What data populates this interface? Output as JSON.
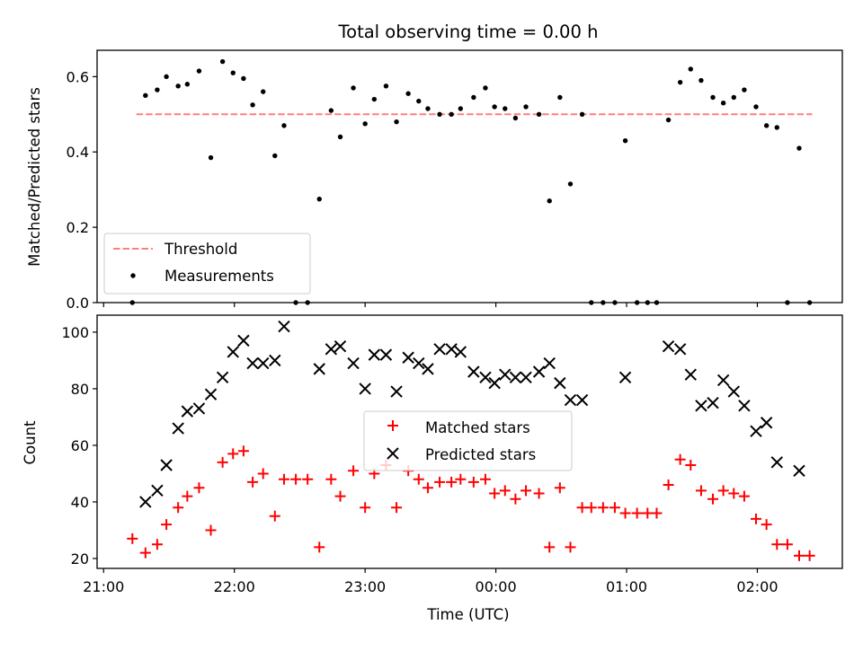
{
  "figure": {
    "title": "Total observing time = 0.00 h",
    "xlabel": "Time (UTC)"
  },
  "chart_data": [
    {
      "type": "scatter",
      "ylabel": "Matched/Predicted stars",
      "xlim_hours": [
        20.95,
        26.65
      ],
      "ylim": [
        0,
        0.67
      ],
      "yticks": [
        0.0,
        0.2,
        0.4,
        0.6
      ],
      "ytick_labels": [
        "0.0",
        "0.2",
        "0.4",
        "0.6"
      ],
      "legend_position": "lower-left",
      "threshold": {
        "name": "Threshold",
        "value": 0.5,
        "x_range": [
          21.25,
          26.42
        ],
        "color": "#ff7f7f"
      },
      "series": [
        {
          "name": "Measurements",
          "color": "#000000",
          "x": [
            21.22,
            21.32,
            21.41,
            21.48,
            21.57,
            21.64,
            21.73,
            21.82,
            21.91,
            21.99,
            22.07,
            22.14,
            22.22,
            22.31,
            22.38,
            22.47,
            22.56,
            22.65,
            22.74,
            22.81,
            22.91,
            23.0,
            23.07,
            23.16,
            23.24,
            23.33,
            23.41,
            23.48,
            23.57,
            23.66,
            23.73,
            23.83,
            23.92,
            23.99,
            24.07,
            24.15,
            24.23,
            24.33,
            24.41,
            24.49,
            24.57,
            24.66,
            24.73,
            24.82,
            24.91,
            24.99,
            25.08,
            25.16,
            25.23,
            25.32,
            25.41,
            25.49,
            25.57,
            25.66,
            25.74,
            25.82,
            25.9,
            25.99,
            26.07,
            26.15,
            26.23,
            26.32,
            26.4
          ],
          "y": [
            0.0,
            0.55,
            0.565,
            0.6,
            0.575,
            0.58,
            0.615,
            0.385,
            0.64,
            0.61,
            0.595,
            0.525,
            0.56,
            0.39,
            0.47,
            0.0,
            0.0,
            0.275,
            0.51,
            0.44,
            0.57,
            0.475,
            0.54,
            0.575,
            0.48,
            0.555,
            0.535,
            0.515,
            0.5,
            0.5,
            0.515,
            0.545,
            0.57,
            0.52,
            0.515,
            0.49,
            0.52,
            0.5,
            0.27,
            0.545,
            0.315,
            0.5,
            0.0,
            0.0,
            0.0,
            0.43,
            0.0,
            0.0,
            0.0,
            0.485,
            0.585,
            0.62,
            0.59,
            0.545,
            0.53,
            0.545,
            0.565,
            0.52,
            0.47,
            0.465,
            0.0,
            0.41,
            0.0
          ]
        }
      ]
    },
    {
      "type": "scatter",
      "ylabel": "Count",
      "xlim_hours": [
        20.95,
        26.65
      ],
      "ylim": [
        16.5,
        106
      ],
      "yticks": [
        20,
        40,
        60,
        80,
        100
      ],
      "ytick_labels": [
        "20",
        "40",
        "60",
        "80",
        "100"
      ],
      "xticks_hours": [
        21,
        22,
        23,
        24,
        25,
        26
      ],
      "xtick_labels": [
        "21:00",
        "22:00",
        "23:00",
        "00:00",
        "01:00",
        "02:00"
      ],
      "legend_position": "center",
      "series": [
        {
          "name": "Matched stars",
          "marker": "plus",
          "color": "#ff0000",
          "x": [
            21.22,
            21.32,
            21.41,
            21.48,
            21.57,
            21.64,
            21.73,
            21.82,
            21.91,
            21.99,
            22.07,
            22.14,
            22.22,
            22.31,
            22.38,
            22.47,
            22.56,
            22.65,
            22.74,
            22.81,
            22.91,
            23.0,
            23.07,
            23.16,
            23.24,
            23.33,
            23.41,
            23.48,
            23.57,
            23.66,
            23.73,
            23.83,
            23.92,
            23.99,
            24.07,
            24.15,
            24.23,
            24.33,
            24.41,
            24.49,
            24.57,
            24.66,
            24.73,
            24.82,
            24.91,
            24.99,
            25.08,
            25.16,
            25.23,
            25.32,
            25.41,
            25.49,
            25.57,
            25.66,
            25.74,
            25.82,
            25.9,
            25.99,
            26.07,
            26.15,
            26.23,
            26.32,
            26.4
          ],
          "y": [
            27,
            22,
            25,
            32,
            38,
            42,
            45,
            30,
            54,
            57,
            58,
            47,
            50,
            35,
            48,
            48,
            48,
            24,
            48,
            42,
            51,
            38,
            50,
            53,
            38,
            51,
            48,
            45,
            47,
            47,
            48,
            47,
            48,
            43,
            44,
            41,
            44,
            43,
            24,
            45,
            24,
            38,
            38,
            38,
            38,
            36,
            36,
            36,
            36,
            46,
            55,
            53,
            44,
            41,
            44,
            43,
            42,
            34,
            32,
            25,
            25,
            21,
            21
          ]
        },
        {
          "name": "Predicted stars",
          "marker": "x",
          "color": "#000000",
          "x": [
            21.32,
            21.41,
            21.48,
            21.57,
            21.64,
            21.73,
            21.82,
            21.91,
            21.99,
            22.07,
            22.14,
            22.22,
            22.31,
            22.38,
            22.65,
            22.74,
            22.81,
            22.91,
            23.0,
            23.07,
            23.16,
            23.24,
            23.33,
            23.41,
            23.48,
            23.57,
            23.66,
            23.73,
            23.83,
            23.92,
            23.99,
            24.07,
            24.15,
            24.23,
            24.33,
            24.41,
            24.49,
            24.57,
            24.66,
            24.99,
            25.32,
            25.41,
            25.49,
            25.57,
            25.66,
            25.74,
            25.82,
            25.9,
            25.99,
            26.07,
            26.15,
            26.32
          ],
          "y": [
            40,
            44,
            53,
            66,
            72,
            73,
            78,
            84,
            93,
            97,
            89,
            89,
            90,
            102,
            87,
            94,
            95,
            89,
            80,
            92,
            92,
            79,
            91,
            89,
            87,
            94,
            94,
            93,
            86,
            84,
            82,
            85,
            84,
            84,
            86,
            89,
            82,
            76,
            76,
            84,
            95,
            94,
            85,
            74,
            75,
            83,
            79,
            74,
            65,
            68,
            54,
            51
          ]
        }
      ]
    }
  ]
}
